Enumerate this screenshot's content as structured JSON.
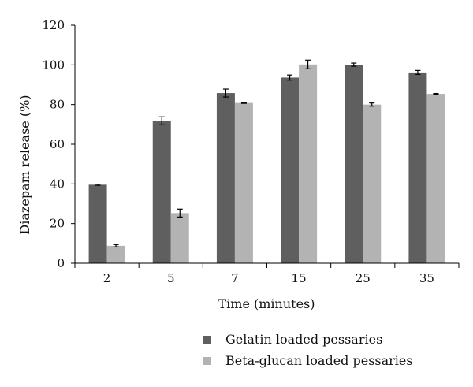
{
  "chart_data": {
    "type": "bar",
    "title": "",
    "xlabel": "Time (minutes)",
    "ylabel": "Diazepam release (%)",
    "categories": [
      "2",
      "5",
      "7",
      "15",
      "25",
      "35"
    ],
    "ylim": [
      0,
      120
    ],
    "yticks": [
      "0",
      "20",
      "40",
      "60",
      "80",
      "100",
      "120"
    ],
    "grid": false,
    "legend_position": "bottom",
    "series": [
      {
        "name": "Gelatin loaded pessaries",
        "color": "#5f5f5f",
        "values": [
          39.6,
          71.8,
          85.8,
          93.6,
          100.1,
          96.2
        ],
        "errors": [
          0.3,
          2.0,
          2.0,
          1.3,
          0.8,
          1.0
        ]
      },
      {
        "name": "Beta-glucan loaded pessaries",
        "color": "#b3b3b3",
        "values": [
          8.8,
          25.3,
          80.8,
          100.2,
          80.0,
          85.4
        ],
        "errors": [
          0.6,
          2.0,
          0.2,
          2.2,
          0.8,
          0.2
        ]
      }
    ]
  }
}
